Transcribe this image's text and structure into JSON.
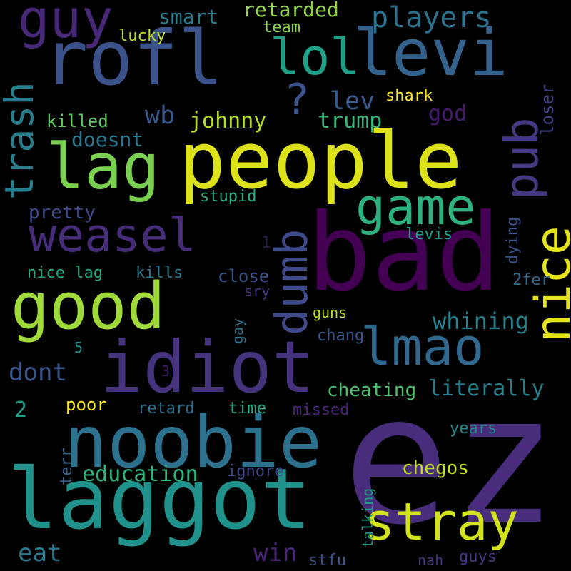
{
  "words": [
    {
      "text": "ez",
      "color": "#472d7b"
    },
    {
      "text": "bad",
      "color": "#440154"
    },
    {
      "text": "people",
      "color": "#dde318"
    },
    {
      "text": "rofl",
      "color": "#3b528b"
    },
    {
      "text": "levi",
      "color": "#33638d"
    },
    {
      "text": "laggot",
      "color": "#21918c"
    },
    {
      "text": "noobie",
      "color": "#2c728e"
    },
    {
      "text": "idiot",
      "color": "#46337e"
    },
    {
      "text": "good",
      "color": "#a0da39"
    },
    {
      "text": "lag",
      "color": "#7ad151"
    },
    {
      "text": "stray",
      "color": "#d2e21b"
    },
    {
      "text": "lmao",
      "color": "#31688e"
    },
    {
      "text": "guy",
      "color": "#482878"
    },
    {
      "text": "weasel",
      "color": "#472c7a"
    },
    {
      "text": "game",
      "color": "#2db27d"
    },
    {
      "text": "lol",
      "color": "#1fa187"
    },
    {
      "text": "dumb",
      "color": "#3e4a89"
    },
    {
      "text": "nice",
      "color": "#e5e419"
    },
    {
      "text": "pub",
      "color": "#443983"
    },
    {
      "text": "trash",
      "color": "#277f8e"
    },
    {
      "text": "?",
      "color": "#3b528b"
    },
    {
      "text": "players",
      "color": "#2c728e"
    },
    {
      "text": "retarded",
      "color": "#90d743"
    },
    {
      "text": "smart",
      "color": "#287c8e"
    },
    {
      "text": "team",
      "color": "#8bd646"
    },
    {
      "text": "lucky",
      "color": "#bddf26"
    },
    {
      "text": "lev",
      "color": "#365c8d"
    },
    {
      "text": "shark",
      "color": "#fde725"
    },
    {
      "text": "god",
      "color": "#481a6c"
    },
    {
      "text": "loser",
      "color": "#414487"
    },
    {
      "text": "wb",
      "color": "#38598c"
    },
    {
      "text": "johnny",
      "color": "#b5de2b"
    },
    {
      "text": "trump",
      "color": "#35b779"
    },
    {
      "text": "killed",
      "color": "#5ec962"
    },
    {
      "text": "doesnt",
      "color": "#2a788e"
    },
    {
      "text": "stupid",
      "color": "#29af7f"
    },
    {
      "text": "pretty",
      "color": "#3e4989"
    },
    {
      "text": "dying",
      "color": "#3a538b"
    },
    {
      "text": "levis",
      "color": "#1f9e89"
    },
    {
      "text": "1",
      "color": "#2f1d4f"
    },
    {
      "text": "nice lag",
      "color": "#22a884"
    },
    {
      "text": "kills",
      "color": "#2a788e"
    },
    {
      "text": "close",
      "color": "#3b528b"
    },
    {
      "text": "sry",
      "color": "#46327e"
    },
    {
      "text": "2fer",
      "color": "#31688e"
    },
    {
      "text": "whining",
      "color": "#26828e"
    },
    {
      "text": "gay",
      "color": "#2c718e"
    },
    {
      "text": "guns",
      "color": "#b8de29"
    },
    {
      "text": "chang",
      "color": "#38588c"
    },
    {
      "text": "5",
      "color": "#21918c"
    },
    {
      "text": "dont",
      "color": "#39568c"
    },
    {
      "text": "3",
      "color": "#3c1e68"
    },
    {
      "text": "cheating",
      "color": "#4ac16d"
    },
    {
      "text": "literally",
      "color": "#277f8e"
    },
    {
      "text": "2",
      "color": "#1fa088"
    },
    {
      "text": "poor",
      "color": "#fde725"
    },
    {
      "text": "retard",
      "color": "#2c728e"
    },
    {
      "text": "time",
      "color": "#22a884"
    },
    {
      "text": "missed",
      "color": "#482576"
    },
    {
      "text": "years",
      "color": "#23898e"
    },
    {
      "text": "terr",
      "color": "#33638d"
    },
    {
      "text": "education",
      "color": "#2fb47c"
    },
    {
      "text": "ignore",
      "color": "#3e4989"
    },
    {
      "text": "chegos",
      "color": "#c2df23"
    },
    {
      "text": "talking",
      "color": "#1fa188"
    },
    {
      "text": "eat",
      "color": "#2a788e"
    },
    {
      "text": "win",
      "color": "#482576"
    },
    {
      "text": "stfu",
      "color": "#3b528b"
    },
    {
      "text": "nah",
      "color": "#46327e"
    },
    {
      "text": "guys",
      "color": "#443a83"
    }
  ]
}
